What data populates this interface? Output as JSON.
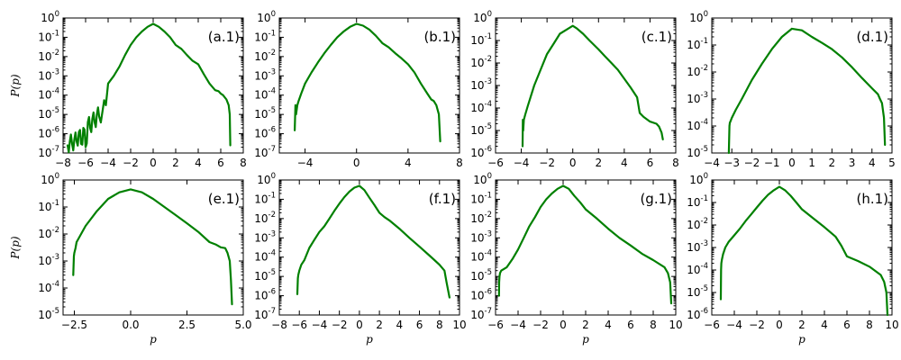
{
  "figure": {
    "line_color": "#008000",
    "ylabel_text": "P(p)",
    "xlabel_text": "p"
  },
  "chart_data": [
    {
      "type": "line",
      "label": "(a.1)",
      "ylabel": "P(p)",
      "xlabel": "",
      "xlim": [
        -8,
        8
      ],
      "xticks": [
        -8,
        -6,
        -4,
        -2,
        0,
        2,
        4,
        6,
        8
      ],
      "ylim_exp": [
        -7,
        0
      ],
      "yscale": "log",
      "series": [
        {
          "noisy_tail": "left",
          "x": [
            -7.6,
            -7.4,
            -7.2,
            -7.0,
            -6.8,
            -6.6,
            -6.4,
            -6.2,
            -6.0,
            -5.8,
            -5.6,
            -5.4,
            -5.2,
            -5.0,
            -4.8,
            -4.5,
            -4.2,
            -4.0,
            -3.5,
            -3.0,
            -2.5,
            -2.0,
            -1.5,
            -1.0,
            -0.5,
            0,
            0.5,
            1.0,
            1.5,
            2.0,
            2.5,
            3.0,
            3.5,
            4.0,
            4.5,
            5.0,
            5.5,
            5.8,
            6.0,
            6.2,
            6.5,
            6.7,
            6.8,
            6.85
          ],
          "y": [
            2.5e-07,
            4e-07,
            3e-07,
            5e-07,
            4e-07,
            1.2e-06,
            3e-07,
            2e-06,
            2e-07,
            4e-06,
            2e-06,
            6e-06,
            4e-06,
            1e-05,
            8e-06,
            1.5e-05,
            3e-05,
            0.0004,
            0.001,
            0.003,
            0.012,
            0.04,
            0.1,
            0.2,
            0.35,
            0.5,
            0.35,
            0.2,
            0.1,
            0.04,
            0.025,
            0.012,
            0.006,
            0.004,
            0.0012,
            0.0004,
            0.00018,
            0.00016,
            0.00012,
            0.0001,
            6e-05,
            3e-05,
            1e-05,
            2.5e-07
          ]
        }
      ]
    },
    {
      "type": "line",
      "label": "(b.1)",
      "ylabel": "",
      "xlabel": "",
      "xlim": [
        -6,
        8
      ],
      "xticks": [
        -4,
        0,
        4,
        8
      ],
      "ylim_exp": [
        -7,
        0
      ],
      "yscale": "log",
      "series": [
        {
          "x": [
            -4.8,
            -4.75,
            -4.7,
            -4.6,
            -4.5,
            -4.3,
            -4.0,
            -3.5,
            -3.0,
            -2.5,
            -2.0,
            -1.5,
            -1.0,
            -0.5,
            0,
            0.5,
            1.0,
            1.5,
            2.0,
            2.5,
            3.0,
            3.5,
            4.0,
            4.5,
            5.0,
            5.5,
            5.8,
            6.0,
            6.2,
            6.4,
            6.5
          ],
          "y": [
            1.5e-06,
            3e-05,
            1e-05,
            3e-05,
            5e-05,
            0.00012,
            0.0004,
            0.0015,
            0.005,
            0.015,
            0.04,
            0.1,
            0.2,
            0.35,
            0.5,
            0.4,
            0.25,
            0.12,
            0.05,
            0.03,
            0.015,
            0.008,
            0.004,
            0.0015,
            0.0004,
            0.00012,
            6e-05,
            5e-05,
            3e-05,
            1e-05,
            4e-07
          ]
        }
      ]
    },
    {
      "type": "line",
      "label": "(c.1)",
      "ylabel": "",
      "xlabel": "",
      "xlim": [
        -6,
        8
      ],
      "xticks": [
        -6,
        -4,
        -2,
        0,
        2,
        4,
        6,
        8
      ],
      "ylim_exp": [
        -6,
        0
      ],
      "yscale": "log",
      "series": [
        {
          "x": [
            -3.9,
            -3.88,
            -3.85,
            -3.8,
            -3.7,
            -3.5,
            -3.0,
            -2.5,
            -2.0,
            -1.5,
            -1.0,
            -0.5,
            0,
            0.3,
            0.8,
            1.3,
            2.0,
            2.5,
            3.0,
            3.5,
            4.0,
            4.5,
            5.0,
            5.2,
            5.5,
            6.0,
            6.5,
            6.7,
            6.9,
            7.0
          ],
          "y": [
            2e-06,
            3e-05,
            1e-05,
            3e-05,
            5e-05,
            0.00012,
            0.001,
            0.005,
            0.025,
            0.07,
            0.2,
            0.3,
            0.45,
            0.35,
            0.2,
            0.1,
            0.04,
            0.02,
            0.01,
            0.005,
            0.002,
            0.0008,
            0.0003,
            6e-05,
            4e-05,
            2.5e-05,
            2e-05,
            1.5e-05,
            8e-06,
            4e-06
          ]
        }
      ]
    },
    {
      "type": "line",
      "label": "(d.1)",
      "ylabel": "",
      "xlabel": "",
      "xlim": [
        -4,
        5
      ],
      "xticks": [
        -4,
        -3,
        -2,
        -1,
        0,
        1,
        2,
        3,
        4,
        5
      ],
      "ylim_exp": [
        -5,
        0
      ],
      "yscale": "log",
      "series": [
        {
          "x": [
            -3.15,
            -3.12,
            -3.1,
            -3.05,
            -3.0,
            -2.8,
            -2.5,
            -2.0,
            -1.5,
            -1.0,
            -0.5,
            0,
            0.5,
            1.0,
            1.5,
            2.0,
            2.5,
            3.0,
            3.5,
            4.0,
            4.3,
            4.4,
            4.5,
            4.6,
            4.65
          ],
          "y": [
            1e-05,
            0.0001,
            0.00013,
            0.00016,
            0.0002,
            0.0004,
            0.001,
            0.005,
            0.02,
            0.07,
            0.2,
            0.4,
            0.35,
            0.2,
            0.12,
            0.07,
            0.035,
            0.015,
            0.006,
            0.0025,
            0.0015,
            0.001,
            0.0007,
            0.0002,
            2e-05
          ]
        }
      ]
    },
    {
      "type": "line",
      "label": "(e.1)",
      "ylabel": "P(p)",
      "xlabel": "p",
      "xlim": [
        -3,
        5
      ],
      "xticks": [
        -2.5,
        0.0,
        2.5,
        5.0
      ],
      "xtick_labels": [
        "−2.5",
        "0.0",
        "2.5",
        "5.0"
      ],
      "ylim_exp": [
        -5,
        0
      ],
      "yscale": "log",
      "series": [
        {
          "x": [
            -2.55,
            -2.52,
            -2.5,
            -2.45,
            -2.4,
            -2.2,
            -2.0,
            -1.5,
            -1.0,
            -0.5,
            0,
            0.5,
            1.0,
            1.5,
            2.0,
            2.5,
            3.0,
            3.5,
            3.8,
            4.0,
            4.2,
            4.3,
            4.4,
            4.45,
            4.5
          ],
          "y": [
            0.0003,
            0.0015,
            0.002,
            0.003,
            0.005,
            0.01,
            0.02,
            0.07,
            0.2,
            0.35,
            0.45,
            0.35,
            0.2,
            0.1,
            0.05,
            0.025,
            0.012,
            0.005,
            0.004,
            0.0032,
            0.003,
            0.002,
            0.001,
            0.0002,
            2.5e-05
          ]
        }
      ]
    },
    {
      "type": "line",
      "label": "(f.1)",
      "ylabel": "",
      "xlabel": "p",
      "xlim": [
        -8,
        10
      ],
      "xticks": [
        -8,
        -6,
        -4,
        -2,
        0,
        2,
        4,
        6,
        8,
        10
      ],
      "ylim_exp": [
        -7,
        0
      ],
      "yscale": "log",
      "series": [
        {
          "x": [
            -6.2,
            -6.15,
            -6.1,
            -6.0,
            -5.8,
            -5.5,
            -5.0,
            -4.5,
            -4.0,
            -3.5,
            -3.0,
            -2.5,
            -2.0,
            -1.5,
            -1.0,
            -0.5,
            0,
            0.5,
            1.0,
            1.5,
            2.0,
            2.5,
            3.0,
            4.0,
            5.0,
            6.0,
            7.0,
            7.5,
            8.0,
            8.5,
            8.7,
            9.0
          ],
          "y": [
            1.2e-06,
            8e-06,
            1.2e-05,
            2e-05,
            4e-05,
            7e-05,
            0.0003,
            0.0008,
            0.002,
            0.004,
            0.01,
            0.025,
            0.06,
            0.13,
            0.25,
            0.4,
            0.5,
            0.3,
            0.12,
            0.05,
            0.02,
            0.012,
            0.008,
            0.003,
            0.001,
            0.00035,
            0.00012,
            7e-05,
            4e-05,
            2e-05,
            5e-06,
            8e-07
          ]
        }
      ]
    },
    {
      "type": "line",
      "label": "(g.1)",
      "ylabel": "",
      "xlabel": "p",
      "xlim": [
        -6,
        10
      ],
      "xticks": [
        -6,
        -4,
        -2,
        0,
        2,
        4,
        6,
        8,
        10
      ],
      "ylim_exp": [
        -7,
        0
      ],
      "yscale": "log",
      "series": [
        {
          "x": [
            -5.7,
            -5.68,
            -5.65,
            -5.6,
            -5.5,
            -5.0,
            -4.5,
            -4.0,
            -3.5,
            -3.0,
            -2.5,
            -2.0,
            -1.5,
            -1.0,
            -0.5,
            0,
            0.5,
            1.0,
            1.5,
            2.0,
            3.0,
            4.0,
            5.0,
            6.0,
            7.0,
            8.0,
            9.0,
            9.3,
            9.5,
            9.6
          ],
          "y": [
            1e-06,
            5e-06,
            1e-05,
            1.5e-05,
            2e-05,
            3e-05,
            8e-05,
            0.00025,
            0.001,
            0.004,
            0.012,
            0.04,
            0.1,
            0.2,
            0.35,
            0.5,
            0.35,
            0.15,
            0.07,
            0.03,
            0.01,
            0.003,
            0.001,
            0.0004,
            0.00015,
            7e-05,
            3e-05,
            1.5e-05,
            5e-06,
            4e-07
          ]
        }
      ]
    },
    {
      "type": "line",
      "label": "(h.1)",
      "ylabel": "",
      "xlabel": "p",
      "xlim": [
        -6,
        10
      ],
      "xticks": [
        -6,
        -4,
        -2,
        0,
        2,
        4,
        6,
        8,
        10
      ],
      "ylim_exp": [
        -6,
        0
      ],
      "yscale": "log",
      "series": [
        {
          "x": [
            -5.2,
            -5.18,
            -5.15,
            -5.1,
            -5.0,
            -4.8,
            -4.5,
            -4.0,
            -3.5,
            -3.0,
            -2.5,
            -2.0,
            -1.5,
            -1.0,
            -0.5,
            0,
            0.5,
            1.0,
            1.5,
            2.0,
            3.0,
            4.0,
            5.0,
            5.5,
            6.0,
            7.0,
            8.0,
            9.0,
            9.3,
            9.5,
            9.6
          ],
          "y": [
            5e-06,
            0.0001,
            0.0002,
            0.0003,
            0.0005,
            0.001,
            0.0018,
            0.0035,
            0.007,
            0.015,
            0.03,
            0.06,
            0.12,
            0.22,
            0.35,
            0.5,
            0.35,
            0.2,
            0.1,
            0.05,
            0.02,
            0.008,
            0.003,
            0.0012,
            0.0004,
            0.00025,
            0.00014,
            6e-05,
            3e-05,
            1e-05,
            1e-06
          ]
        }
      ]
    }
  ]
}
